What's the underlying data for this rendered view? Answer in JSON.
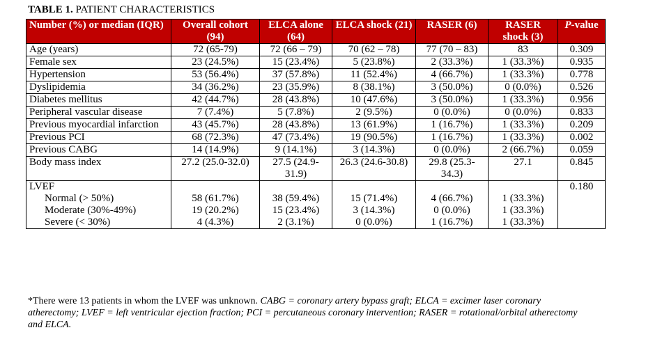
{
  "title": {
    "label": "TABLE 1.",
    "text": "PATIENT CHARACTERISTICS"
  },
  "table": {
    "columns": [
      "Number (%) or median (IQR)",
      "Overall cohort (94)",
      "ELCA alone (64)",
      "ELCA shock (21)",
      "RASER (6)",
      "RASER shock (3)",
      {
        "italic": "P",
        "rest": "-value"
      }
    ],
    "rows": [
      [
        "Age (years)",
        "72 (65-79)",
        "72 (66 – 79)",
        "70 (62 – 78)",
        "77 (70 – 83)",
        "83",
        "0.309"
      ],
      [
        "Female sex",
        "23 (24.5%)",
        "15 (23.4%)",
        "5 (23.8%)",
        "2 (33.3%)",
        "1 (33.3%)",
        "0.935"
      ],
      [
        "Hypertension",
        "53 (56.4%)",
        "37 (57.8%)",
        "11 (52.4%)",
        "4 (66.7%)",
        "1 (33.3%)",
        "0.778"
      ],
      [
        "Dyslipidemia",
        "34 (36.2%)",
        "23 (35.9%)",
        "8 (38.1%)",
        "3 (50.0%)",
        "0 (0.0%)",
        "0.526"
      ],
      [
        "Diabetes mellitus",
        "42 (44.7%)",
        "28 (43.8%)",
        "10 (47.6%)",
        "3 (50.0%)",
        "1 (33.3%)",
        "0.956"
      ],
      [
        "Peripheral vascular disease",
        "7 (7.4%)",
        "5 (7.8%)",
        "2 (9.5%)",
        "0 (0.0%)",
        "0 (0.0%)",
        "0.833"
      ],
      [
        "Previous myocardial infarction",
        "43 (45.7%)",
        "28 (43.8%)",
        "13 (61.9%)",
        "1 (16.7%)",
        "1 (33.3%)",
        "0.209"
      ],
      [
        "Previous PCI",
        "68 (72.3%)",
        "47 (73.4%)",
        "19 (90.5%)",
        "1 (16.7%)",
        "1 (33.3%)",
        "0.002"
      ],
      [
        "Previous CABG",
        "14 (14.9%)",
        "9 (14.1%)",
        "3 (14.3%)",
        "0 (0.0%)",
        "2 (66.7%)",
        "0.059"
      ],
      [
        "Body mass index",
        "27.2 (25.0-32.0)",
        "27.5 (24.9-31.9)",
        "26.3 (24.6-30.8)",
        "29.8 (25.3-34.3)",
        "27.1",
        "0.845"
      ]
    ],
    "lvef": {
      "label": "LVEF",
      "p": "0.180",
      "rows": [
        [
          "Normal (> 50%)",
          "58 (61.7%)",
          "38 (59.4%)",
          "15 (71.4%)",
          "4 (66.7%)",
          "1 (33.3%)"
        ],
        [
          "Moderate (30%-49%)",
          "19 (20.2%)",
          "15 (23.4%)",
          "3 (14.3%)",
          "0 (0.0%)",
          "1 (33.3%)"
        ],
        [
          "Severe (< 30%)",
          "4 (4.3%)",
          "2 (3.1%)",
          "0 (0.0%)",
          "1 (16.7%)",
          "1 (33.3%)"
        ]
      ]
    }
  },
  "footnote": {
    "plain": "*There were 13 patients in whom the LVEF was unknown.",
    "italic": "CABG = coronary artery bypass graft; ELCA = excimer laser coronary atherectomy; LVEF = left ventricular ejection fraction; PCI = percutaneous coronary intervention; RASER = rotational/orbital atherectomy and ELCA."
  }
}
